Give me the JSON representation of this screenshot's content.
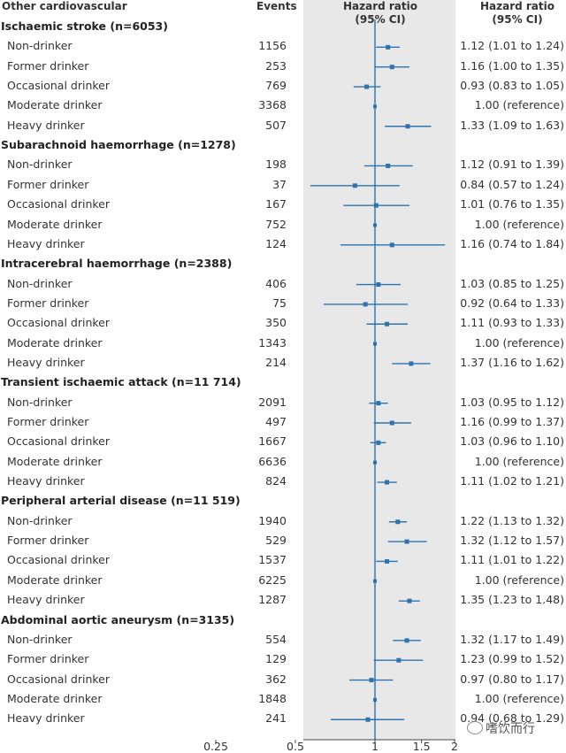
{
  "header": {
    "col_group": "Other cardiovascular",
    "col_events": "Events",
    "col_plot": [
      "Hazard ratio",
      "(95% CI)"
    ],
    "col_hr": [
      "Hazard ratio",
      "(95% CI)"
    ]
  },
  "x_ticks": [
    "0.25",
    "0.5",
    "1",
    "1.5",
    "2"
  ],
  "watermark": "嗜饮而行",
  "colors": {
    "series": "#2e73b0",
    "panel": "#e8e8e8",
    "reference_line": "#2e73b0"
  },
  "chart_data": {
    "type": "forest",
    "x_axis": {
      "ticks": [
        0.25,
        0.5,
        1,
        1.5,
        2
      ],
      "reference": 1
    },
    "groups": [
      {
        "title": "Ischaemic stroke (n=6053)",
        "rows": [
          {
            "label": "Non-drinker",
            "events": "1156",
            "hr": 1.12,
            "lo": 1.01,
            "hi": 1.24,
            "text": "1.12 (1.01 to 1.24)"
          },
          {
            "label": "Former drinker",
            "events": "253",
            "hr": 1.16,
            "lo": 1.0,
            "hi": 1.35,
            "text": "1.16 (1.00 to 1.35)"
          },
          {
            "label": "Occasional drinker",
            "events": "769",
            "hr": 0.93,
            "lo": 0.83,
            "hi": 1.05,
            "text": "0.93 (0.83 to 1.05)"
          },
          {
            "label": "Moderate drinker",
            "events": "3368",
            "hr": 1.0,
            "lo": 1.0,
            "hi": 1.0,
            "text": "1.00 (reference)"
          },
          {
            "label": "Heavy drinker",
            "events": "507",
            "hr": 1.33,
            "lo": 1.09,
            "hi": 1.63,
            "text": "1.33 (1.09 to 1.63)"
          }
        ]
      },
      {
        "title": "Subarachnoid haemorrhage (n=1278)",
        "rows": [
          {
            "label": "Non-drinker",
            "events": "198",
            "hr": 1.12,
            "lo": 0.91,
            "hi": 1.39,
            "text": "1.12 (0.91 to 1.39)"
          },
          {
            "label": "Former drinker",
            "events": "37",
            "hr": 0.84,
            "lo": 0.57,
            "hi": 1.24,
            "text": "0.84 (0.57 to 1.24)"
          },
          {
            "label": "Occasional drinker",
            "events": "167",
            "hr": 1.01,
            "lo": 0.76,
            "hi": 1.35,
            "text": "1.01 (0.76 to 1.35)"
          },
          {
            "label": "Moderate drinker",
            "events": "752",
            "hr": 1.0,
            "lo": 1.0,
            "hi": 1.0,
            "text": "1.00 (reference)"
          },
          {
            "label": "Heavy drinker",
            "events": "124",
            "hr": 1.16,
            "lo": 0.74,
            "hi": 1.84,
            "text": "1.16 (0.74 to 1.84)"
          }
        ]
      },
      {
        "title": "Intracerebral haemorrhage (n=2388)",
        "rows": [
          {
            "label": "Non-drinker",
            "events": "406",
            "hr": 1.03,
            "lo": 0.85,
            "hi": 1.25,
            "text": "1.03 (0.85 to 1.25)"
          },
          {
            "label": "Former drinker",
            "events": "75",
            "hr": 0.92,
            "lo": 0.64,
            "hi": 1.33,
            "text": "0.92 (0.64 to 1.33)"
          },
          {
            "label": "Occasional drinker",
            "events": "350",
            "hr": 1.11,
            "lo": 0.93,
            "hi": 1.33,
            "text": "1.11 (0.93 to 1.33)"
          },
          {
            "label": "Moderate drinker",
            "events": "1343",
            "hr": 1.0,
            "lo": 1.0,
            "hi": 1.0,
            "text": "1.00 (reference)"
          },
          {
            "label": "Heavy drinker",
            "events": "214",
            "hr": 1.37,
            "lo": 1.16,
            "hi": 1.62,
            "text": "1.37 (1.16 to 1.62)"
          }
        ]
      },
      {
        "title": "Transient ischaemic attack (n=11 714)",
        "rows": [
          {
            "label": "Non-drinker",
            "events": "2091",
            "hr": 1.03,
            "lo": 0.95,
            "hi": 1.12,
            "text": "1.03 (0.95 to 1.12)"
          },
          {
            "label": "Former drinker",
            "events": "497",
            "hr": 1.16,
            "lo": 0.99,
            "hi": 1.37,
            "text": "1.16 (0.99 to 1.37)"
          },
          {
            "label": "Occasional drinker",
            "events": "1667",
            "hr": 1.03,
            "lo": 0.96,
            "hi": 1.1,
            "text": "1.03 (0.96 to 1.10)"
          },
          {
            "label": "Moderate drinker",
            "events": "6636",
            "hr": 1.0,
            "lo": 1.0,
            "hi": 1.0,
            "text": "1.00 (reference)"
          },
          {
            "label": "Heavy drinker",
            "events": "824",
            "hr": 1.11,
            "lo": 1.02,
            "hi": 1.21,
            "text": "1.11 (1.02 to 1.21)"
          }
        ]
      },
      {
        "title": "Peripheral arterial disease (n=11 519)",
        "rows": [
          {
            "label": "Non-drinker",
            "events": "1940",
            "hr": 1.22,
            "lo": 1.13,
            "hi": 1.32,
            "text": "1.22 (1.13 to 1.32)"
          },
          {
            "label": "Former drinker",
            "events": "529",
            "hr": 1.32,
            "lo": 1.12,
            "hi": 1.57,
            "text": "1.32 (1.12 to 1.57)"
          },
          {
            "label": "Occasional drinker",
            "events": "1537",
            "hr": 1.11,
            "lo": 1.01,
            "hi": 1.22,
            "text": "1.11 (1.01 to 1.22)"
          },
          {
            "label": "Moderate drinker",
            "events": "6225",
            "hr": 1.0,
            "lo": 1.0,
            "hi": 1.0,
            "text": "1.00 (reference)"
          },
          {
            "label": "Heavy drinker",
            "events": "1287",
            "hr": 1.35,
            "lo": 1.23,
            "hi": 1.48,
            "text": "1.35 (1.23 to 1.48)"
          }
        ]
      },
      {
        "title": "Abdominal aortic aneurysm (n=3135)",
        "rows": [
          {
            "label": "Non-drinker",
            "events": "554",
            "hr": 1.32,
            "lo": 1.17,
            "hi": 1.49,
            "text": "1.32 (1.17 to 1.49)"
          },
          {
            "label": "Former drinker",
            "events": "129",
            "hr": 1.23,
            "lo": 0.99,
            "hi": 1.52,
            "text": "1.23 (0.99 to 1.52)"
          },
          {
            "label": "Occasional drinker",
            "events": "362",
            "hr": 0.97,
            "lo": 0.8,
            "hi": 1.17,
            "text": "0.97 (0.80 to 1.17)"
          },
          {
            "label": "Moderate drinker",
            "events": "1848",
            "hr": 1.0,
            "lo": 1.0,
            "hi": 1.0,
            "text": "1.00 (reference)"
          },
          {
            "label": "Heavy drinker",
            "events": "241",
            "hr": 0.94,
            "lo": 0.68,
            "hi": 1.29,
            "text": "0.94 (0.68 to 1.29)"
          }
        ]
      }
    ]
  }
}
